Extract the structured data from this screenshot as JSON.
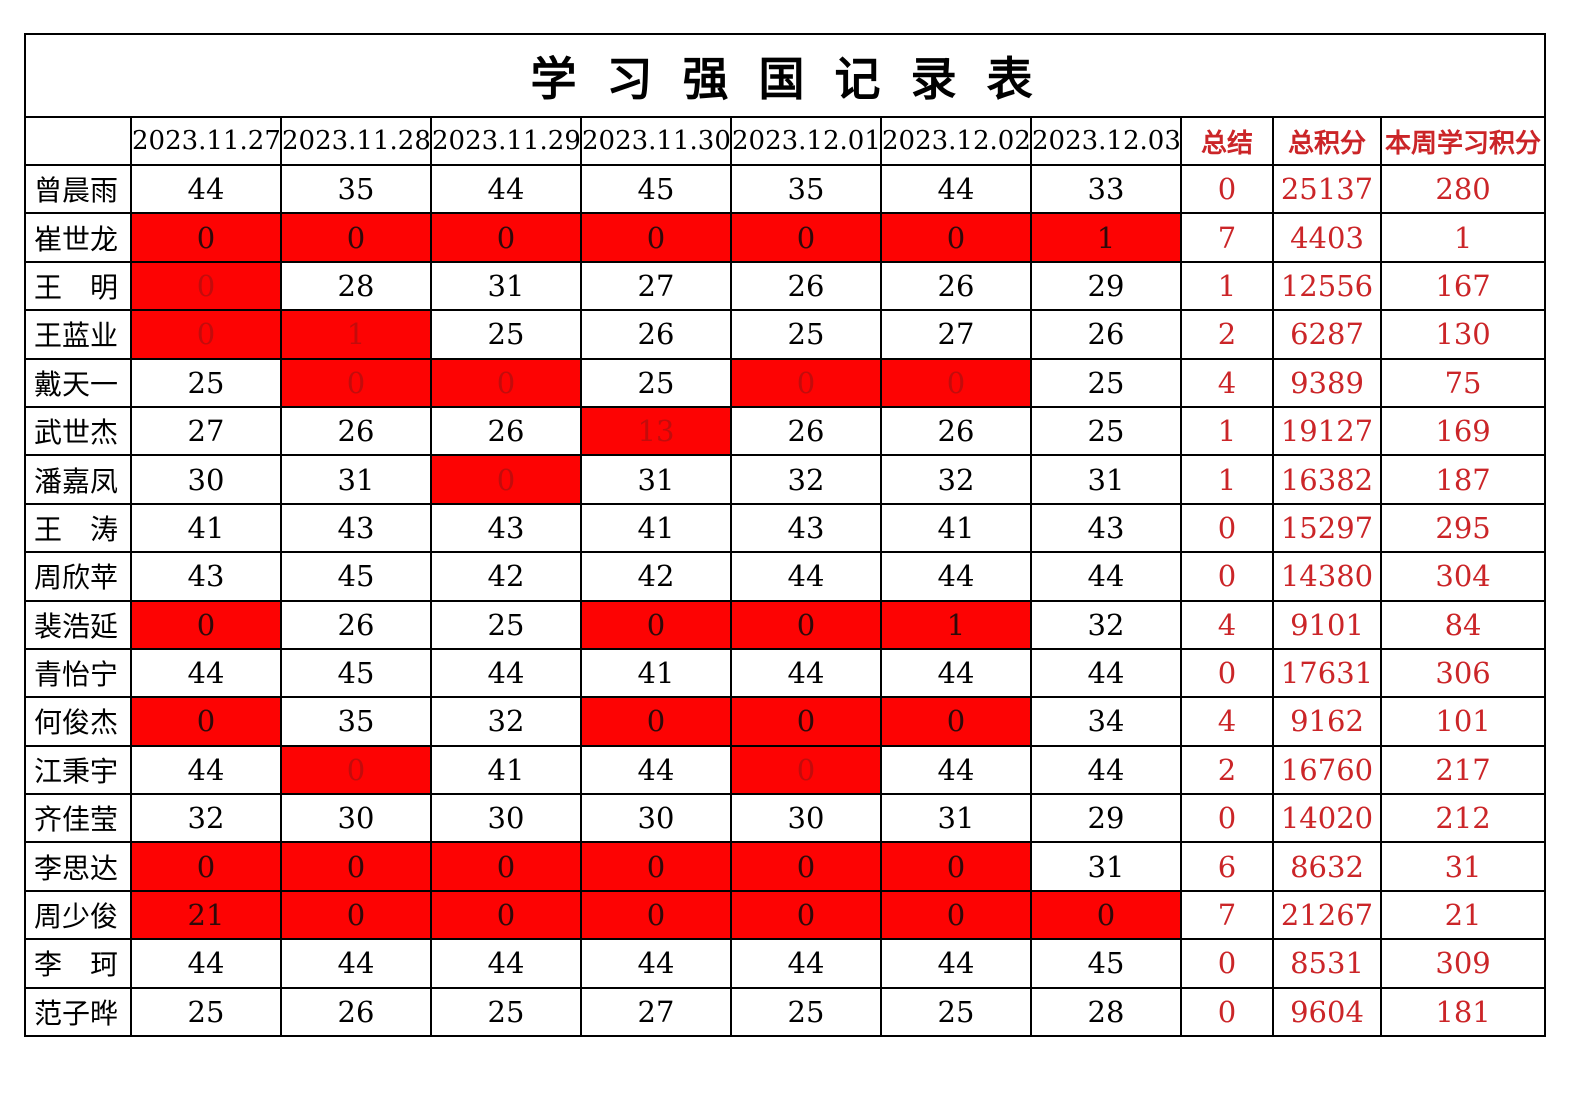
{
  "title": "学 习 强 国 记 录 表",
  "colors": {
    "highlight_bg": "#fd0303",
    "summary_text": "#cb2528",
    "dark_text_on_red": "#2f0a0a",
    "dim_text_on_red": "#c20c0c",
    "border": "#000000",
    "normal_text": "#000000"
  },
  "header": {
    "corner": "",
    "dates": [
      "2023.11.27",
      "2023.11.28",
      "2023.11.29",
      "2023.11.30",
      "2023.12.01",
      "2023.12.02",
      "2023.12.03"
    ],
    "summary_label": "总结",
    "total_label": "总积分",
    "week_label": "本周学习积分"
  },
  "rows": [
    {
      "name": "曾晨雨",
      "daily": [
        {
          "v": "44",
          "s": 0
        },
        {
          "v": "35",
          "s": 0
        },
        {
          "v": "44",
          "s": 0
        },
        {
          "v": "45",
          "s": 0
        },
        {
          "v": "35",
          "s": 0
        },
        {
          "v": "44",
          "s": 0
        },
        {
          "v": "33",
          "s": 0
        }
      ],
      "summary": "0",
      "total": "25137",
      "week": "280"
    },
    {
      "name": "崔世龙",
      "daily": [
        {
          "v": "0",
          "s": 1
        },
        {
          "v": "0",
          "s": 1
        },
        {
          "v": "0",
          "s": 1
        },
        {
          "v": "0",
          "s": 1
        },
        {
          "v": "0",
          "s": 1
        },
        {
          "v": "0",
          "s": 1
        },
        {
          "v": "1",
          "s": 1
        }
      ],
      "summary": "7",
      "total": "4403",
      "week": "1"
    },
    {
      "name": "王　明",
      "daily": [
        {
          "v": "0",
          "s": 2
        },
        {
          "v": "28",
          "s": 0
        },
        {
          "v": "31",
          "s": 0
        },
        {
          "v": "27",
          "s": 0
        },
        {
          "v": "26",
          "s": 0
        },
        {
          "v": "26",
          "s": 0
        },
        {
          "v": "29",
          "s": 0
        }
      ],
      "summary": "1",
      "total": "12556",
      "week": "167"
    },
    {
      "name": "王蓝业",
      "daily": [
        {
          "v": "0",
          "s": 2
        },
        {
          "v": "1",
          "s": 2
        },
        {
          "v": "25",
          "s": 0
        },
        {
          "v": "26",
          "s": 0
        },
        {
          "v": "25",
          "s": 0
        },
        {
          "v": "27",
          "s": 0
        },
        {
          "v": "26",
          "s": 0
        }
      ],
      "summary": "2",
      "total": "6287",
      "week": "130"
    },
    {
      "name": "戴天一",
      "daily": [
        {
          "v": "25",
          "s": 0
        },
        {
          "v": "0",
          "s": 2
        },
        {
          "v": "0",
          "s": 2
        },
        {
          "v": "25",
          "s": 0
        },
        {
          "v": "0",
          "s": 2
        },
        {
          "v": "0",
          "s": 2
        },
        {
          "v": "25",
          "s": 0
        }
      ],
      "summary": "4",
      "total": "9389",
      "week": "75"
    },
    {
      "name": "武世杰",
      "daily": [
        {
          "v": "27",
          "s": 0
        },
        {
          "v": "26",
          "s": 0
        },
        {
          "v": "26",
          "s": 0
        },
        {
          "v": "13",
          "s": 2
        },
        {
          "v": "26",
          "s": 0
        },
        {
          "v": "26",
          "s": 0
        },
        {
          "v": "25",
          "s": 0
        }
      ],
      "summary": "1",
      "total": "19127",
      "week": "169"
    },
    {
      "name": "潘嘉凤",
      "daily": [
        {
          "v": "30",
          "s": 0
        },
        {
          "v": "31",
          "s": 0
        },
        {
          "v": "0",
          "s": 2
        },
        {
          "v": "31",
          "s": 0
        },
        {
          "v": "32",
          "s": 0
        },
        {
          "v": "32",
          "s": 0
        },
        {
          "v": "31",
          "s": 0
        }
      ],
      "summary": "1",
      "total": "16382",
      "week": "187"
    },
    {
      "name": "王　涛",
      "daily": [
        {
          "v": "41",
          "s": 0
        },
        {
          "v": "43",
          "s": 0
        },
        {
          "v": "43",
          "s": 0
        },
        {
          "v": "41",
          "s": 0
        },
        {
          "v": "43",
          "s": 0
        },
        {
          "v": "41",
          "s": 0
        },
        {
          "v": "43",
          "s": 0
        }
      ],
      "summary": "0",
      "total": "15297",
      "week": "295"
    },
    {
      "name": "周欣苹",
      "daily": [
        {
          "v": "43",
          "s": 0
        },
        {
          "v": "45",
          "s": 0
        },
        {
          "v": "42",
          "s": 0
        },
        {
          "v": "42",
          "s": 0
        },
        {
          "v": "44",
          "s": 0
        },
        {
          "v": "44",
          "s": 0
        },
        {
          "v": "44",
          "s": 0
        }
      ],
      "summary": "0",
      "total": "14380",
      "week": "304"
    },
    {
      "name": "裴浩延",
      "daily": [
        {
          "v": "0",
          "s": 1
        },
        {
          "v": "26",
          "s": 0
        },
        {
          "v": "25",
          "s": 0
        },
        {
          "v": "0",
          "s": 1
        },
        {
          "v": "0",
          "s": 1
        },
        {
          "v": "1",
          "s": 1
        },
        {
          "v": "32",
          "s": 0
        }
      ],
      "summary": "4",
      "total": "9101",
      "week": "84"
    },
    {
      "name": "青怡宁",
      "daily": [
        {
          "v": "44",
          "s": 0
        },
        {
          "v": "45",
          "s": 0
        },
        {
          "v": "44",
          "s": 0
        },
        {
          "v": "41",
          "s": 0
        },
        {
          "v": "44",
          "s": 0
        },
        {
          "v": "44",
          "s": 0
        },
        {
          "v": "44",
          "s": 0
        }
      ],
      "summary": "0",
      "total": "17631",
      "week": "306"
    },
    {
      "name": "何俊杰",
      "daily": [
        {
          "v": "0",
          "s": 1
        },
        {
          "v": "35",
          "s": 0
        },
        {
          "v": "32",
          "s": 0
        },
        {
          "v": "0",
          "s": 1
        },
        {
          "v": "0",
          "s": 1
        },
        {
          "v": "0",
          "s": 1
        },
        {
          "v": "34",
          "s": 0
        }
      ],
      "summary": "4",
      "total": "9162",
      "week": "101"
    },
    {
      "name": "江秉宇",
      "daily": [
        {
          "v": "44",
          "s": 0
        },
        {
          "v": "0",
          "s": 2
        },
        {
          "v": "41",
          "s": 0
        },
        {
          "v": "44",
          "s": 0
        },
        {
          "v": "0",
          "s": 2
        },
        {
          "v": "44",
          "s": 0
        },
        {
          "v": "44",
          "s": 0
        }
      ],
      "summary": "2",
      "total": "16760",
      "week": "217"
    },
    {
      "name": "齐佳莹",
      "daily": [
        {
          "v": "32",
          "s": 0
        },
        {
          "v": "30",
          "s": 0
        },
        {
          "v": "30",
          "s": 0
        },
        {
          "v": "30",
          "s": 0
        },
        {
          "v": "30",
          "s": 0
        },
        {
          "v": "31",
          "s": 0
        },
        {
          "v": "29",
          "s": 0
        }
      ],
      "summary": "0",
      "total": "14020",
      "week": "212"
    },
    {
      "name": "李思达",
      "daily": [
        {
          "v": "0",
          "s": 1
        },
        {
          "v": "0",
          "s": 1
        },
        {
          "v": "0",
          "s": 1
        },
        {
          "v": "0",
          "s": 1
        },
        {
          "v": "0",
          "s": 1
        },
        {
          "v": "0",
          "s": 1
        },
        {
          "v": "31",
          "s": 0
        }
      ],
      "summary": "6",
      "total": "8632",
      "week": "31"
    },
    {
      "name": "周少俊",
      "daily": [
        {
          "v": "21",
          "s": 1
        },
        {
          "v": "0",
          "s": 1
        },
        {
          "v": "0",
          "s": 1
        },
        {
          "v": "0",
          "s": 1
        },
        {
          "v": "0",
          "s": 1
        },
        {
          "v": "0",
          "s": 1
        },
        {
          "v": "0",
          "s": 1
        }
      ],
      "summary": "7",
      "total": "21267",
      "week": "21"
    },
    {
      "name": "李　珂",
      "daily": [
        {
          "v": "44",
          "s": 0
        },
        {
          "v": "44",
          "s": 0
        },
        {
          "v": "44",
          "s": 0
        },
        {
          "v": "44",
          "s": 0
        },
        {
          "v": "44",
          "s": 0
        },
        {
          "v": "44",
          "s": 0
        },
        {
          "v": "45",
          "s": 0
        }
      ],
      "summary": "0",
      "total": "8531",
      "week": "309"
    },
    {
      "name": "范子晔",
      "daily": [
        {
          "v": "25",
          "s": 0
        },
        {
          "v": "26",
          "s": 0
        },
        {
          "v": "25",
          "s": 0
        },
        {
          "v": "27",
          "s": 0
        },
        {
          "v": "25",
          "s": 0
        },
        {
          "v": "25",
          "s": 0
        },
        {
          "v": "28",
          "s": 0
        }
      ],
      "summary": "0",
      "total": "9604",
      "week": "181"
    }
  ]
}
